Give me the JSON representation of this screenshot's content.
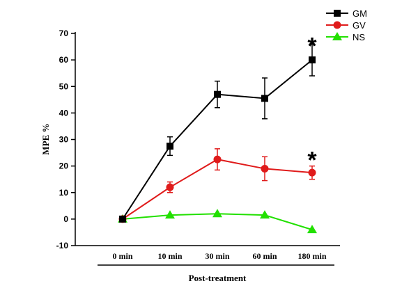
{
  "chart_data": {
    "type": "line",
    "categories": [
      "0 min",
      "10 min",
      "30 min",
      "60 min",
      "180 min"
    ],
    "xlabel": "Post-treatment",
    "ylabel": "MPE %",
    "ylim": [
      -10,
      70
    ],
    "yticks": [
      -10,
      0,
      10,
      20,
      30,
      40,
      50,
      60,
      70
    ],
    "grid": false,
    "legend_position": "top-right",
    "series": [
      {
        "name": "GM",
        "color": "#000000",
        "marker": "square",
        "values": [
          0,
          27.5,
          47,
          45.5,
          60
        ],
        "errors": [
          0,
          3.5,
          5,
          7.7,
          6
        ]
      },
      {
        "name": "GV",
        "color": "#e01b1b",
        "marker": "circle",
        "values": [
          0,
          12,
          22.5,
          19,
          17.5
        ],
        "errors": [
          0,
          2,
          4,
          4.5,
          2.5
        ]
      },
      {
        "name": "NS",
        "color": "#22e000",
        "marker": "triangle",
        "values": [
          0,
          1.5,
          2,
          1.5,
          -4
        ],
        "errors": [
          0,
          0,
          0,
          0,
          0
        ]
      }
    ],
    "annotations": [
      {
        "text": "*",
        "category": "180 min",
        "value": 68,
        "series": "GM"
      },
      {
        "text": "*",
        "category": "180 min",
        "value": 25,
        "series": "GV"
      }
    ]
  }
}
